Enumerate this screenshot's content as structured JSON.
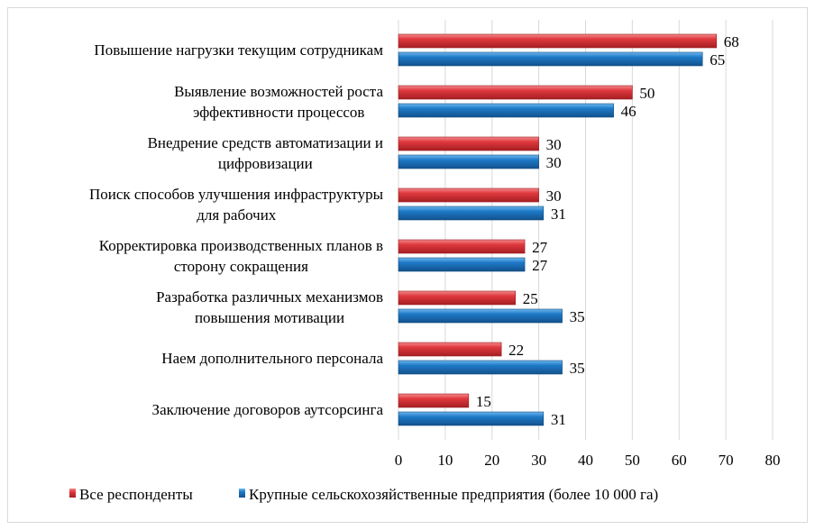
{
  "chart_data": {
    "type": "bar",
    "orientation": "horizontal",
    "title": "",
    "xlabel": "",
    "ylabel": "",
    "xlim": [
      0,
      80
    ],
    "x_ticks": [
      "0",
      "10",
      "20",
      "30",
      "40",
      "50",
      "60",
      "70",
      "80"
    ],
    "grid": true,
    "legend_position": "bottom",
    "categories": [
      [
        "Повышение нагрузки текущим сотрудникам"
      ],
      [
        "Выявление возможностей роста",
        "эффективности процессов"
      ],
      [
        "Внедрение средств автоматизации и",
        "цифровизации"
      ],
      [
        "Поиск способов улучшения инфраструктуры",
        "для рабочих"
      ],
      [
        "Корректировка производственных планов в",
        "сторону сокращения"
      ],
      [
        "Разработка различных механизмов",
        "повышения мотивации"
      ],
      [
        "Наем дополнительного персонала"
      ],
      [
        "Заключение договоров аутсорсинга"
      ]
    ],
    "series": [
      {
        "name": "Все респонденты",
        "color": "#e0393e",
        "values": [
          68,
          50,
          30,
          30,
          27,
          25,
          22,
          15
        ]
      },
      {
        "name": "Крупные сельскохозяйственные предприятия (более 10 000 га)",
        "color": "#1f7ac8",
        "values": [
          65,
          46,
          30,
          31,
          27,
          35,
          35,
          31
        ]
      }
    ]
  }
}
